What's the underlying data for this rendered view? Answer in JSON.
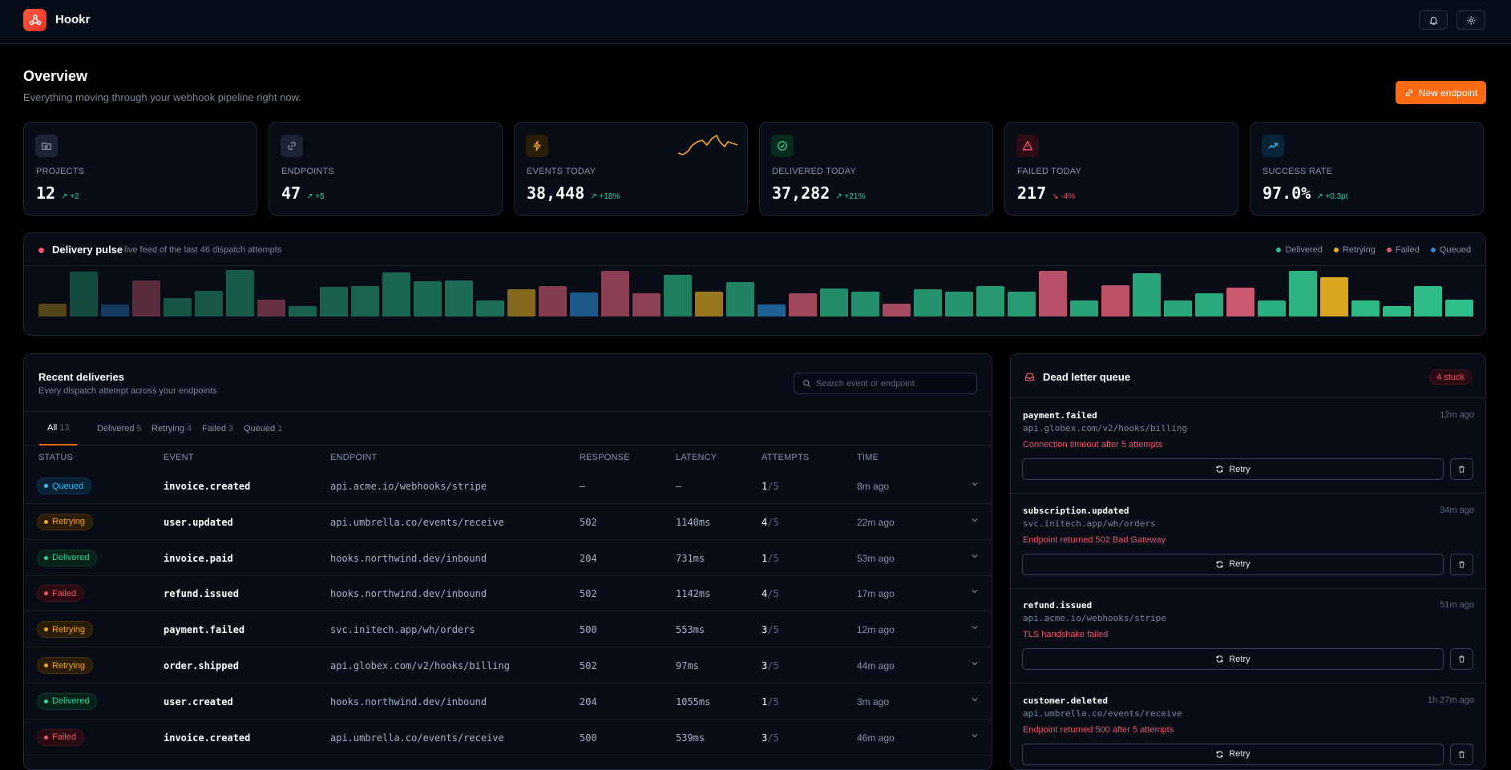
{
  "app": {
    "name": "Hookr"
  },
  "header": {
    "title": "Overview",
    "subtitle": "Everything moving through your webhook pipeline right now.",
    "new_button": "New endpoint"
  },
  "stats": [
    {
      "label": "PROJECTS",
      "value": "12",
      "delta": "+2",
      "trend": "up",
      "icon": "folder-icon",
      "color": "#8a93a6"
    },
    {
      "label": "ENDPOINTS",
      "value": "47",
      "delta": "+5",
      "trend": "up",
      "icon": "link-icon",
      "color": "#8a93a6"
    },
    {
      "label": "EVENTS TODAY",
      "value": "38,448",
      "delta": "+18%",
      "trend": "up",
      "icon": "zap-icon",
      "color": "#f5a623"
    },
    {
      "label": "DELIVERED TODAY",
      "value": "37,282",
      "delta": "+21%",
      "trend": "up",
      "icon": "check-circle-icon",
      "color": "#34d399"
    },
    {
      "label": "FAILED TODAY",
      "value": "217",
      "delta": "-4%",
      "trend": "down",
      "icon": "alert-triangle-icon",
      "color": "#f2566b"
    },
    {
      "label": "SUCCESS RATE",
      "value": "97.0%",
      "delta": "+0.3pt",
      "trend": "up",
      "icon": "trending-up-icon",
      "color": "#38bdf8"
    }
  ],
  "pulse": {
    "title": "Delivery pulse",
    "subtitle": "live feed of the last 46 dispatch attempts",
    "legend": [
      "Delivered",
      "Retrying",
      "Failed",
      "Queued"
    ],
    "colors": {
      "Delivered": "#2fbf8a",
      "Retrying": "#e6b022",
      "Failed": "#e0607a",
      "Queued": "#2a8ad4"
    },
    "attempts": [
      {
        "s": "Retrying",
        "v": 0.28
      },
      {
        "s": "Delivered",
        "v": 0.97
      },
      {
        "s": "Queued",
        "v": 0.26
      },
      {
        "s": "Failed",
        "v": 0.78
      },
      {
        "s": "Delivered",
        "v": 0.4
      },
      {
        "s": "Delivered",
        "v": 0.55
      },
      {
        "s": "Delivered",
        "v": 1.0
      },
      {
        "s": "Failed",
        "v": 0.37
      },
      {
        "s": "Delivered",
        "v": 0.22
      },
      {
        "s": "Delivered",
        "v": 0.63
      },
      {
        "s": "Delivered",
        "v": 0.65
      },
      {
        "s": "Delivered",
        "v": 0.94
      },
      {
        "s": "Delivered",
        "v": 0.76
      },
      {
        "s": "Delivered",
        "v": 0.78
      },
      {
        "s": "Delivered",
        "v": 0.34
      },
      {
        "s": "Retrying",
        "v": 0.58
      },
      {
        "s": "Failed",
        "v": 0.65
      },
      {
        "s": "Queued",
        "v": 0.52
      },
      {
        "s": "Failed",
        "v": 0.98
      },
      {
        "s": "Failed",
        "v": 0.5
      },
      {
        "s": "Delivered",
        "v": 0.9
      },
      {
        "s": "Retrying",
        "v": 0.53
      },
      {
        "s": "Delivered",
        "v": 0.75
      },
      {
        "s": "Queued",
        "v": 0.26
      },
      {
        "s": "Failed",
        "v": 0.5
      },
      {
        "s": "Delivered",
        "v": 0.6
      },
      {
        "s": "Delivered",
        "v": 0.54
      },
      {
        "s": "Failed",
        "v": 0.28
      },
      {
        "s": "Delivered",
        "v": 0.58
      },
      {
        "s": "Delivered",
        "v": 0.54
      },
      {
        "s": "Delivered",
        "v": 0.66
      },
      {
        "s": "Delivered",
        "v": 0.54
      },
      {
        "s": "Failed",
        "v": 0.99
      },
      {
        "s": "Delivered",
        "v": 0.34
      },
      {
        "s": "Failed",
        "v": 0.67
      },
      {
        "s": "Delivered",
        "v": 0.93
      },
      {
        "s": "Delivered",
        "v": 0.35
      },
      {
        "s": "Delivered",
        "v": 0.5
      },
      {
        "s": "Failed",
        "v": 0.62
      },
      {
        "s": "Delivered",
        "v": 0.34
      },
      {
        "s": "Delivered",
        "v": 0.99
      },
      {
        "s": "Retrying",
        "v": 0.85
      },
      {
        "s": "Delivered",
        "v": 0.35
      },
      {
        "s": "Delivered",
        "v": 0.22
      },
      {
        "s": "Delivered",
        "v": 0.66
      },
      {
        "s": "Delivered",
        "v": 0.36
      }
    ]
  },
  "deliveries": {
    "title": "Recent deliveries",
    "subtitle": "Every dispatch attempt across your endpoints",
    "search_placeholder": "Search event or endpoint",
    "tabs": [
      {
        "label": "All",
        "count": "13"
      },
      {
        "label": "Delivered",
        "count": "5"
      },
      {
        "label": "Retrying",
        "count": "4"
      },
      {
        "label": "Failed",
        "count": "3"
      },
      {
        "label": "Queued",
        "count": "1"
      }
    ],
    "columns": [
      "STATUS",
      "EVENT",
      "ENDPOINT",
      "RESPONSE",
      "LATENCY",
      "ATTEMPTS",
      "TIME"
    ],
    "rows": [
      {
        "status": "Queued",
        "event": "invoice.created",
        "endpoint": "api.acme.io/webhooks/stripe",
        "response": "—",
        "latency": "—",
        "attempts": "1",
        "max": "/5",
        "time": "8m ago"
      },
      {
        "status": "Retrying",
        "event": "user.updated",
        "endpoint": "api.umbrella.co/events/receive",
        "response": "502",
        "latency": "1140ms",
        "attempts": "4",
        "max": "/5",
        "time": "22m ago"
      },
      {
        "status": "Delivered",
        "event": "invoice.paid",
        "endpoint": "hooks.northwind.dev/inbound",
        "response": "204",
        "latency": "731ms",
        "attempts": "1",
        "max": "/5",
        "time": "53m ago"
      },
      {
        "status": "Failed",
        "event": "refund.issued",
        "endpoint": "hooks.northwind.dev/inbound",
        "response": "502",
        "latency": "1142ms",
        "attempts": "4",
        "max": "/5",
        "time": "17m ago"
      },
      {
        "status": "Retrying",
        "event": "payment.failed",
        "endpoint": "svc.initech.app/wh/orders",
        "response": "500",
        "latency": "553ms",
        "attempts": "3",
        "max": "/5",
        "time": "12m ago"
      },
      {
        "status": "Retrying",
        "event": "order.shipped",
        "endpoint": "api.globex.com/v2/hooks/billing",
        "response": "502",
        "latency": "97ms",
        "attempts": "3",
        "max": "/5",
        "time": "44m ago"
      },
      {
        "status": "Delivered",
        "event": "user.created",
        "endpoint": "hooks.northwind.dev/inbound",
        "response": "204",
        "latency": "1055ms",
        "attempts": "1",
        "max": "/5",
        "time": "3m ago"
      },
      {
        "status": "Failed",
        "event": "invoice.created",
        "endpoint": "api.umbrella.co/events/receive",
        "response": "500",
        "latency": "539ms",
        "attempts": "3",
        "max": "/5",
        "time": "46m ago"
      }
    ]
  },
  "dlq": {
    "title": "Dead letter queue",
    "badge": "4 stuck",
    "retry_label": "Retry",
    "items": [
      {
        "event": "payment.failed",
        "endpoint": "api.globex.com/v2/hooks/billing",
        "error": "Connection timeout after 5 attempts",
        "time": "12m ago"
      },
      {
        "event": "subscription.updated",
        "endpoint": "svc.initech.app/wh/orders",
        "error": "Endpoint returned 502 Bad Gateway",
        "time": "34m ago"
      },
      {
        "event": "refund.issued",
        "endpoint": "api.acme.io/webhooks/stripe",
        "error": "TLS handshake failed",
        "time": "51m ago"
      },
      {
        "event": "customer.deleted",
        "endpoint": "api.umbrella.co/events/receive",
        "error": "Endpoint returned 500 after 5 attempts",
        "time": "1h 27m ago"
      }
    ]
  }
}
